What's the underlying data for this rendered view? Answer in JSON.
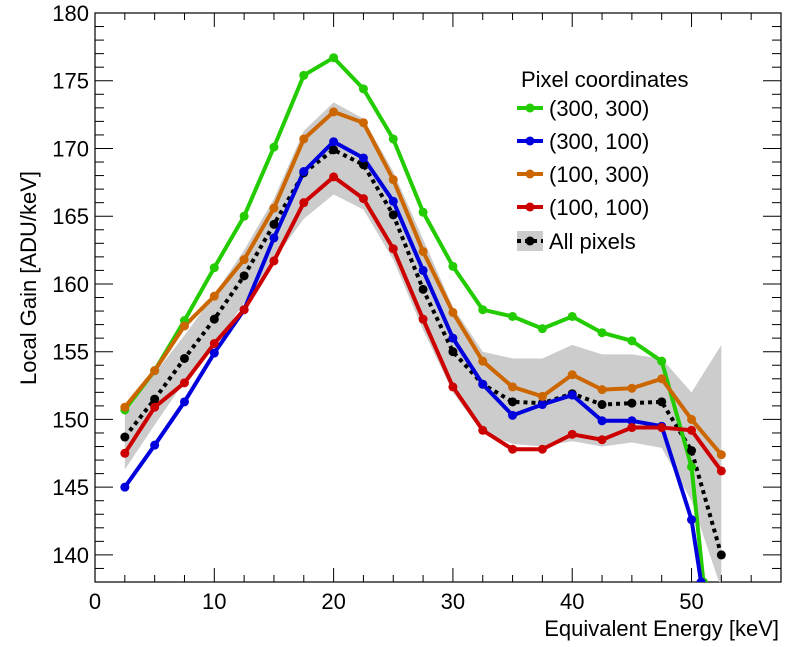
{
  "chart_data": {
    "type": "line",
    "title": "",
    "xlabel": "Equivalent Energy [keV]",
    "ylabel": "Local Gain [ADU/keV]",
    "xlim": [
      0,
      57.5
    ],
    "ylim": [
      138,
      180
    ],
    "xticks": [
      0,
      10,
      20,
      30,
      40,
      50
    ],
    "yticks": [
      140,
      145,
      150,
      155,
      160,
      165,
      170,
      175,
      180
    ],
    "grid": false,
    "legend": {
      "title": "Pixel coordinates",
      "placement": "top-right"
    },
    "series": [
      {
        "name": "(300, 300)",
        "color": "#22cc00",
        "style": "solid",
        "x": [
          2.5,
          5,
          7.5,
          10,
          12.5,
          15,
          17.5,
          20,
          22.5,
          25,
          27.5,
          30,
          32.5,
          35,
          37.5,
          40,
          42.5,
          45,
          47.5,
          50,
          51
        ],
        "y": [
          150.7,
          153.6,
          157.3,
          161.2,
          165.0,
          170.1,
          175.4,
          176.7,
          174.4,
          170.7,
          165.3,
          161.3,
          158.1,
          157.6,
          156.7,
          157.6,
          156.4,
          155.8,
          154.3,
          146.5,
          138.0
        ]
      },
      {
        "name": "(300, 100)",
        "color": "#0000dd",
        "style": "solid",
        "x": [
          2.5,
          5,
          7.5,
          10,
          12.5,
          15,
          17.5,
          20,
          22.5,
          25,
          27.5,
          30,
          32.5,
          35,
          37.5,
          40,
          42.5,
          45,
          47.5,
          50,
          50.8
        ],
        "y": [
          145.0,
          148.1,
          151.3,
          154.9,
          158.1,
          163.4,
          168.3,
          170.5,
          169.3,
          166.1,
          161.0,
          156.0,
          152.6,
          150.3,
          151.1,
          151.8,
          149.9,
          149.9,
          149.5,
          142.6,
          138.0
        ]
      },
      {
        "name": "(100, 300)",
        "color": "#cc6600",
        "style": "solid",
        "x": [
          2.5,
          5,
          7.5,
          10,
          12.5,
          15,
          17.5,
          20,
          22.5,
          25,
          27.5,
          30,
          32.5,
          35,
          37.5,
          40,
          42.5,
          45,
          47.5,
          50,
          52.5
        ],
        "y": [
          150.9,
          153.6,
          156.9,
          159.1,
          161.8,
          165.6,
          170.7,
          172.7,
          171.9,
          167.7,
          162.4,
          157.9,
          154.3,
          152.4,
          151.7,
          153.3,
          152.2,
          152.3,
          153.0,
          150.0,
          147.4
        ]
      },
      {
        "name": "(100, 100)",
        "color": "#cc0000",
        "style": "solid",
        "x": [
          2.5,
          5,
          7.5,
          10,
          12.5,
          15,
          17.5,
          20,
          22.5,
          25,
          27.5,
          30,
          32.5,
          35,
          37.5,
          40,
          42.5,
          45,
          47.5,
          50,
          52.5
        ],
        "y": [
          147.5,
          150.9,
          152.7,
          155.6,
          158.1,
          161.7,
          166.0,
          167.9,
          166.3,
          162.6,
          157.4,
          152.4,
          149.2,
          147.8,
          147.8,
          148.9,
          148.5,
          149.4,
          149.4,
          149.2,
          146.2
        ]
      },
      {
        "name": "All pixels",
        "color": "#000000",
        "style": "dotted",
        "band_color": "#cccccc",
        "x": [
          2.5,
          5,
          7.5,
          10,
          12.5,
          15,
          17.5,
          20,
          22.5,
          25,
          27.5,
          30,
          32.5,
          35,
          37.5,
          40,
          42.5,
          45,
          47.5,
          50,
          52.5
        ],
        "y": [
          148.7,
          151.5,
          154.5,
          157.4,
          160.6,
          164.4,
          168.2,
          169.9,
          168.8,
          165.1,
          159.6,
          155.0,
          152.6,
          151.3,
          151.2,
          151.9,
          151.1,
          151.2,
          151.3,
          147.7,
          140.0
        ],
        "y_low": [
          146.3,
          149.6,
          152.8,
          155.4,
          158.6,
          161.8,
          164.8,
          166.6,
          165.5,
          161.8,
          156.6,
          152.0,
          149.0,
          148.2,
          148.0,
          148.4,
          148.0,
          148.3,
          147.9,
          144.0,
          137.5
        ],
        "y_high": [
          150.4,
          153.4,
          156.2,
          159.2,
          162.5,
          166.3,
          171.3,
          173.4,
          172.2,
          168.3,
          163.3,
          158.3,
          155.0,
          154.5,
          154.5,
          155.5,
          154.8,
          154.8,
          154.5,
          152.0,
          155.5
        ]
      }
    ]
  }
}
